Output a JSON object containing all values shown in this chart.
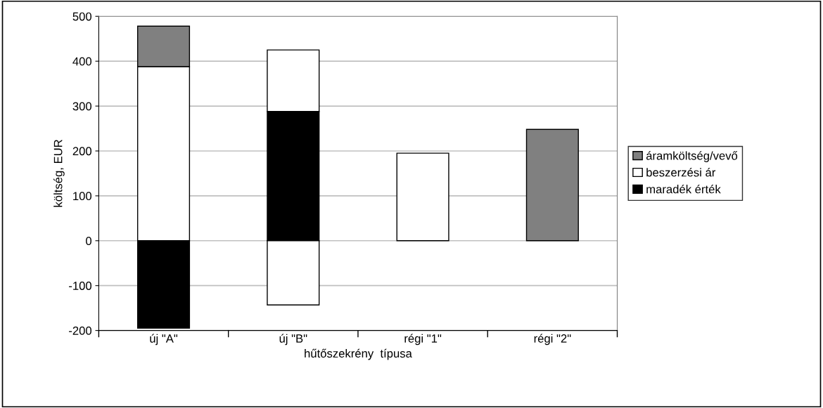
{
  "chart_data": {
    "type": "bar",
    "stacked": true,
    "xlabel": "hűtőszekrény  típusa",
    "ylabel": "költség, EUR",
    "categories": [
      "új \"A\"",
      "új \"B\"",
      "régi \"1\"",
      "régi \"2\""
    ],
    "series": [
      {
        "name": "maradék érték",
        "color": "#000000",
        "values": [
          -195,
          288,
          null,
          null
        ]
      },
      {
        "name": "beszerzési ár",
        "color": "#ffffff",
        "values": [
          388,
          137,
          195,
          null
        ]
      },
      {
        "name": "áramköltség/vevő",
        "color": "#808080",
        "values": [
          90,
          null,
          null,
          248
        ]
      },
      {
        "color": "#ffffff",
        "values": [
          null,
          -143,
          null,
          null
        ]
      }
    ],
    "ylim": [
      -200,
      500
    ],
    "yticks": [
      -200,
      -100,
      0,
      100,
      200,
      300,
      400,
      500
    ],
    "grid": "y",
    "legend": "right"
  }
}
